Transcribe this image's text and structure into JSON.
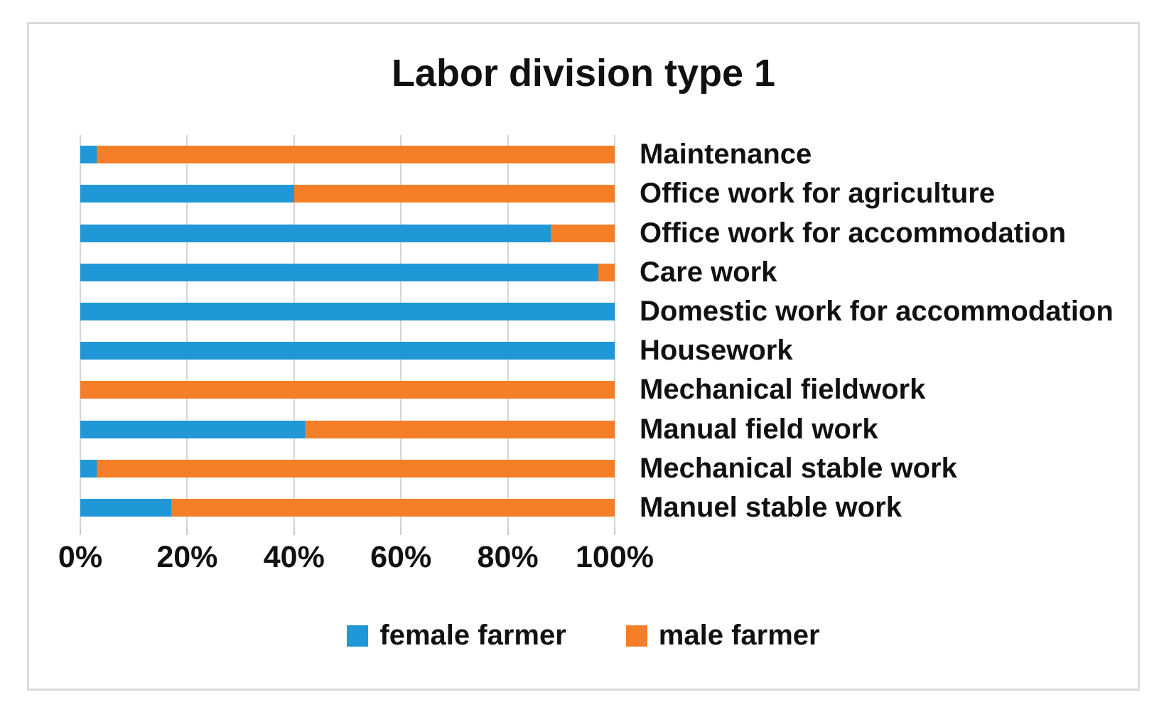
{
  "chart_data": {
    "type": "bar",
    "variant": "horizontal-stacked",
    "title": "Labor division type 1",
    "categories": [
      "Maintenance",
      "Office work for agriculture",
      "Office work for accommodation",
      "Care work",
      "Domestic work for accommodation",
      "Housework",
      "Mechanical fieldwork",
      "Manual field work",
      "Mechanical stable work",
      "Manuel stable work"
    ],
    "series": [
      {
        "name": "female farmer",
        "color": "#2097D6",
        "values": [
          3,
          40,
          88,
          97,
          100,
          100,
          0,
          42,
          3,
          17
        ]
      },
      {
        "name": "male farmer",
        "color": "#F57E28",
        "values": [
          97,
          60,
          12,
          3,
          0,
          0,
          100,
          58,
          97,
          83
        ]
      }
    ],
    "x_ticks": [
      "0%",
      "20%",
      "40%",
      "60%",
      "80%",
      "100%"
    ],
    "xlim": [
      0,
      100
    ],
    "grid": "vertical",
    "gridline_color": "#D6D6D6",
    "legend_position": "bottom"
  }
}
